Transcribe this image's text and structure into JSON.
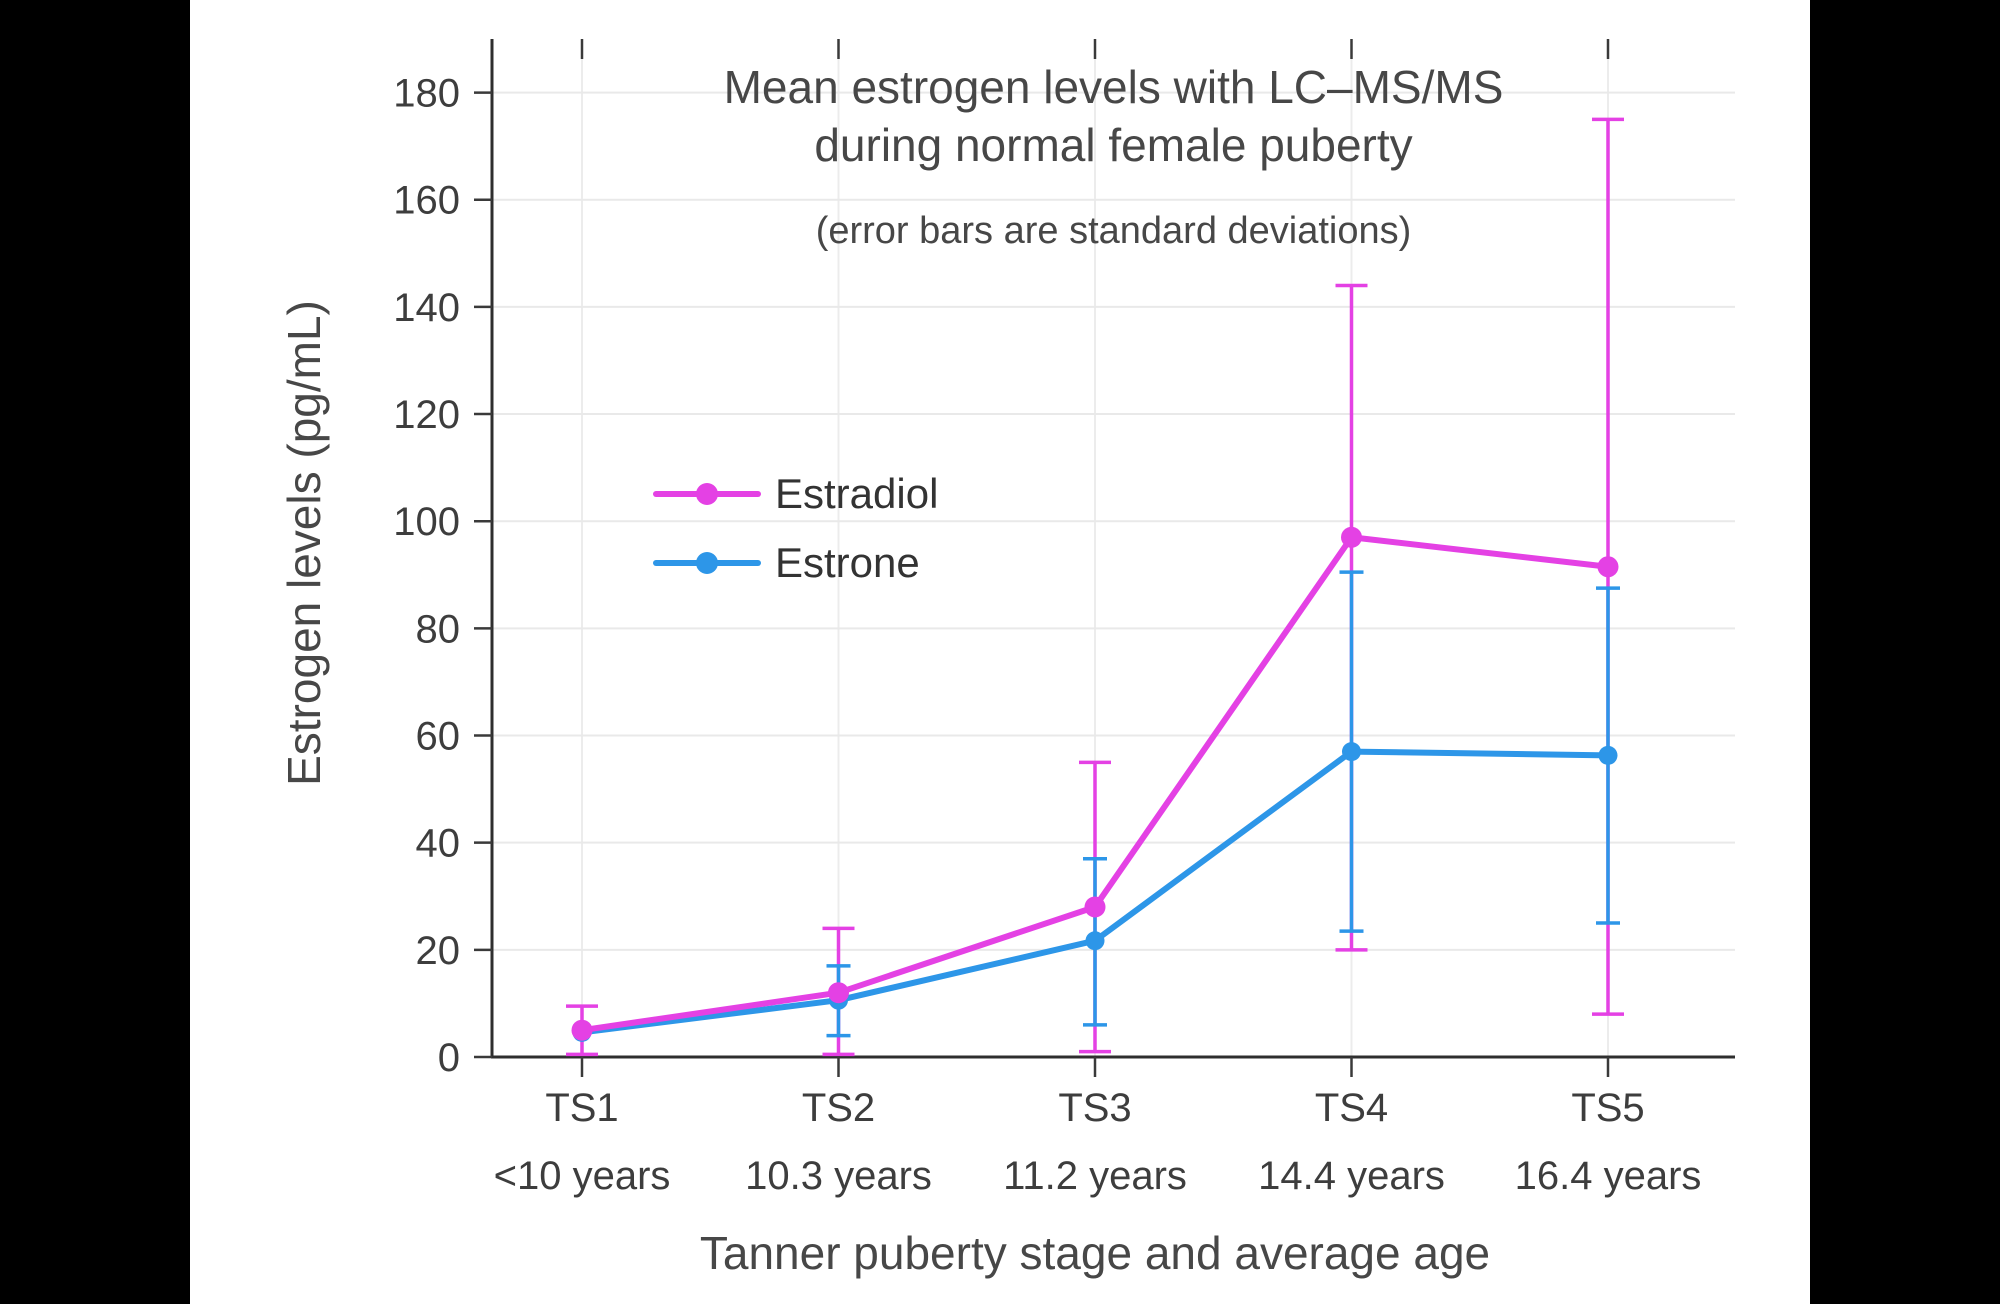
{
  "window": {
    "background": "#000000",
    "panel_background": "#ffffff"
  },
  "chart_data": {
    "type": "line",
    "title_line1": "Mean estrogen levels with LC–MS/MS",
    "title_line2": "during normal female puberty",
    "subtitle": "(error bars are standard deviations)",
    "xlabel": "Tanner puberty stage and average age",
    "ylabel": "Estrogen levels (pg/mL)",
    "categories": [
      "TS1",
      "TS2",
      "TS3",
      "TS4",
      "TS5"
    ],
    "category_sublabels": [
      "<10 years",
      "10.3 years",
      "11.2 years",
      "14.4 years",
      "16.4 years"
    ],
    "yticks": [
      0,
      20,
      40,
      60,
      80,
      100,
      120,
      140,
      160,
      180
    ],
    "ylim": [
      0,
      190
    ],
    "grid": true,
    "legend_position": "inside-upper-left",
    "error_bar_meaning": "standard deviations",
    "series": [
      {
        "name": "Estradiol",
        "color": "#e441e4",
        "values": [
          5,
          12,
          28,
          97,
          91.5
        ],
        "error_low": [
          0.5,
          0.5,
          1,
          20,
          8
        ],
        "error_high": [
          9.5,
          24,
          55,
          144,
          175
        ]
      },
      {
        "name": "Estrone",
        "color": "#2d96e8",
        "values": [
          4.6,
          10.6,
          21.7,
          57,
          56.3
        ],
        "error_low": [
          null,
          4,
          6,
          23.5,
          25
        ],
        "error_high": [
          null,
          17,
          37,
          90.5,
          87.5
        ]
      }
    ]
  }
}
